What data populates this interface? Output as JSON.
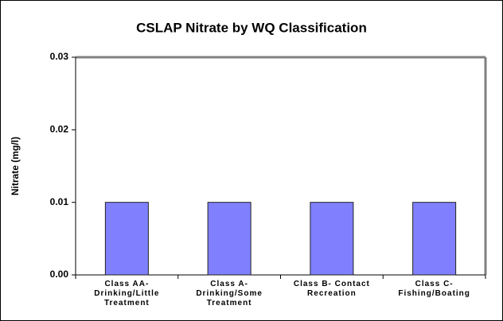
{
  "chart_data": {
    "type": "bar",
    "title": "CSLAP Nitrate by WQ Classification",
    "y_label": "Nitrate (mg/l)",
    "categories": [
      "Class AA- Drinking/Little Treatment",
      "Class A- Drinking/Some Treatment",
      "Class B- Contact Recreation",
      "Class C- Fishing/Boating"
    ],
    "values": [
      0.01,
      0.01,
      0.01,
      0.01
    ],
    "color": "#8080ff",
    "ylim": [
      0,
      0.03
    ],
    "yticks": [
      {
        "value": 0,
        "label": "0.00"
      },
      {
        "value": 0.01,
        "label": "0.01"
      },
      {
        "value": 0.02,
        "label": "0.02"
      },
      {
        "value": 0.03,
        "label": "0.03"
      }
    ]
  }
}
